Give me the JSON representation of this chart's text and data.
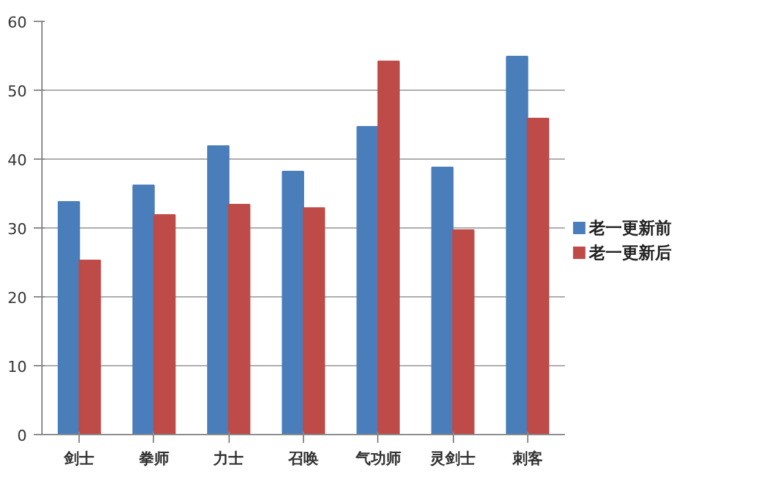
{
  "chart_data": {
    "type": "bar",
    "categories": [
      "剑士",
      "拳师",
      "力士",
      "召唤",
      "气功师",
      "灵剑士",
      "刺客"
    ],
    "series": [
      {
        "name": "老一更新前",
        "color": "#4a7ebb",
        "values": [
          33.8,
          36.2,
          41.9,
          38.2,
          44.7,
          38.8,
          54.9
        ]
      },
      {
        "name": "老一更新后",
        "color": "#be4b48",
        "values": [
          25.3,
          31.9,
          33.4,
          32.9,
          54.2,
          29.7,
          45.9
        ]
      }
    ],
    "ylim": [
      0,
      60
    ],
    "yticks": [
      0,
      10,
      20,
      30,
      40,
      50,
      60
    ],
    "grid": "y",
    "legend": "right"
  }
}
